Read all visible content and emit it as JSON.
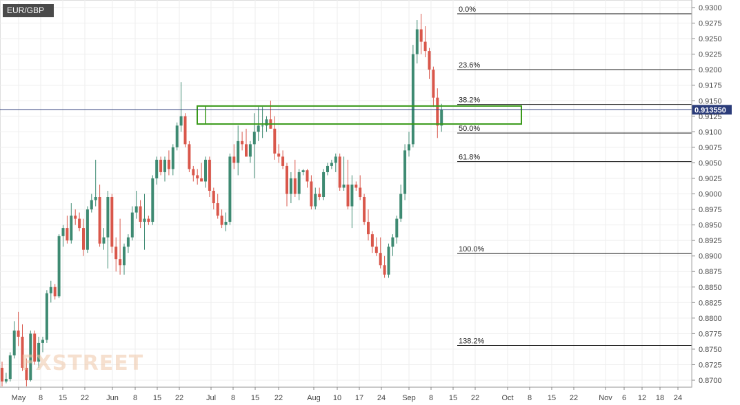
{
  "chart_data": {
    "type": "candlestick",
    "symbol": "EUR/GBP",
    "watermark": "FXSTREET",
    "y_axis": {
      "range": [
        0.869,
        0.931
      ],
      "ticks": [
        "0.9300",
        "0.9275",
        "0.9250",
        "0.9225",
        "0.9200",
        "0.9175",
        "0.9150",
        "0.9125",
        "0.9100",
        "0.9075",
        "0.9050",
        "0.9025",
        "0.9000",
        "0.8975",
        "0.8950",
        "0.8925",
        "0.8900",
        "0.8875",
        "0.8850",
        "0.8825",
        "0.8800",
        "0.8775",
        "0.8750",
        "0.8725",
        "0.8700"
      ]
    },
    "x_axis": {
      "labels": [
        "May",
        "8",
        "15",
        "22",
        "Jun",
        "8",
        "15",
        "22",
        "Jul",
        "8",
        "15",
        "22",
        "Aug",
        "10",
        "17",
        "24",
        "Sep",
        "8",
        "15",
        "22",
        "Oct",
        "8",
        "15",
        "22",
        "Nov",
        "6",
        "12",
        "18",
        "24"
      ]
    },
    "current_price": {
      "label": "0.913550",
      "value": 0.91355,
      "color": "#2b3c7a"
    },
    "fibonacci": [
      {
        "label": "0.0%",
        "value": 0.929
      },
      {
        "label": "23.6%",
        "value": 0.92
      },
      {
        "label": "38.2%",
        "value": 0.9144
      },
      {
        "label": "50.0%",
        "value": 0.9098
      },
      {
        "label": "61.8%",
        "value": 0.9052
      },
      {
        "label": "100.0%",
        "value": 0.8904
      },
      {
        "label": "138.2%",
        "value": 0.8756
      }
    ],
    "resistance_zone": {
      "top": 0.91415,
      "bottom": 0.91125,
      "color": "#3a9a1a"
    },
    "colors": {
      "up": "#3e8a72",
      "down": "#d9574b",
      "grid": "#eeeeee",
      "axis_text": "#444444"
    },
    "candles": [
      {
        "o": 0.872,
        "h": 0.873,
        "l": 0.869,
        "c": 0.8698
      },
      {
        "o": 0.8698,
        "h": 0.8712,
        "l": 0.8695,
        "c": 0.8702
      },
      {
        "o": 0.8702,
        "h": 0.8745,
        "l": 0.8698,
        "c": 0.874
      },
      {
        "o": 0.874,
        "h": 0.8795,
        "l": 0.8735,
        "c": 0.878
      },
      {
        "o": 0.878,
        "h": 0.881,
        "l": 0.8755,
        "c": 0.877
      },
      {
        "o": 0.877,
        "h": 0.879,
        "l": 0.8715,
        "c": 0.872
      },
      {
        "o": 0.872,
        "h": 0.8735,
        "l": 0.869,
        "c": 0.87
      },
      {
        "o": 0.87,
        "h": 0.878,
        "l": 0.8698,
        "c": 0.8775
      },
      {
        "o": 0.8775,
        "h": 0.878,
        "l": 0.8725,
        "c": 0.873
      },
      {
        "o": 0.873,
        "h": 0.877,
        "l": 0.872,
        "c": 0.876
      },
      {
        "o": 0.876,
        "h": 0.877,
        "l": 0.8745,
        "c": 0.8765
      },
      {
        "o": 0.8765,
        "h": 0.8845,
        "l": 0.876,
        "c": 0.884
      },
      {
        "o": 0.884,
        "h": 0.886,
        "l": 0.8825,
        "c": 0.885
      },
      {
        "o": 0.885,
        "h": 0.8855,
        "l": 0.883,
        "c": 0.8835
      },
      {
        "o": 0.8835,
        "h": 0.8935,
        "l": 0.8832,
        "c": 0.8932
      },
      {
        "o": 0.8932,
        "h": 0.895,
        "l": 0.8915,
        "c": 0.8945
      },
      {
        "o": 0.8945,
        "h": 0.8965,
        "l": 0.892,
        "c": 0.8925
      },
      {
        "o": 0.8925,
        "h": 0.8985,
        "l": 0.892,
        "c": 0.8965
      },
      {
        "o": 0.8965,
        "h": 0.8975,
        "l": 0.895,
        "c": 0.896
      },
      {
        "o": 0.896,
        "h": 0.897,
        "l": 0.894,
        "c": 0.8945
      },
      {
        "o": 0.8945,
        "h": 0.896,
        "l": 0.89,
        "c": 0.891
      },
      {
        "o": 0.891,
        "h": 0.898,
        "l": 0.8905,
        "c": 0.8975
      },
      {
        "o": 0.8975,
        "h": 0.9,
        "l": 0.897,
        "c": 0.899
      },
      {
        "o": 0.899,
        "h": 0.9055,
        "l": 0.898,
        "c": 0.8995
      },
      {
        "o": 0.8995,
        "h": 0.9015,
        "l": 0.8915,
        "c": 0.892
      },
      {
        "o": 0.892,
        "h": 0.8945,
        "l": 0.891,
        "c": 0.893
      },
      {
        "o": 0.893,
        "h": 0.9005,
        "l": 0.888,
        "c": 0.8995
      },
      {
        "o": 0.8995,
        "h": 0.9,
        "l": 0.8905,
        "c": 0.8915
      },
      {
        "o": 0.8915,
        "h": 0.893,
        "l": 0.8875,
        "c": 0.8895
      },
      {
        "o": 0.8895,
        "h": 0.896,
        "l": 0.887,
        "c": 0.8885
      },
      {
        "o": 0.8885,
        "h": 0.892,
        "l": 0.887,
        "c": 0.8915
      },
      {
        "o": 0.8915,
        "h": 0.8935,
        "l": 0.8905,
        "c": 0.893
      },
      {
        "o": 0.893,
        "h": 0.898,
        "l": 0.8925,
        "c": 0.897
      },
      {
        "o": 0.897,
        "h": 0.9005,
        "l": 0.896,
        "c": 0.898
      },
      {
        "o": 0.898,
        "h": 0.899,
        "l": 0.8945,
        "c": 0.8955
      },
      {
        "o": 0.8955,
        "h": 0.9,
        "l": 0.891,
        "c": 0.896
      },
      {
        "o": 0.896,
        "h": 0.8965,
        "l": 0.895,
        "c": 0.8955
      },
      {
        "o": 0.8955,
        "h": 0.903,
        "l": 0.895,
        "c": 0.9025
      },
      {
        "o": 0.9025,
        "h": 0.906,
        "l": 0.9015,
        "c": 0.9055
      },
      {
        "o": 0.9055,
        "h": 0.906,
        "l": 0.903,
        "c": 0.9035
      },
      {
        "o": 0.9035,
        "h": 0.906,
        "l": 0.902,
        "c": 0.9055
      },
      {
        "o": 0.9055,
        "h": 0.907,
        "l": 0.903,
        "c": 0.904
      },
      {
        "o": 0.904,
        "h": 0.908,
        "l": 0.903,
        "c": 0.9075
      },
      {
        "o": 0.9075,
        "h": 0.9115,
        "l": 0.907,
        "c": 0.911
      },
      {
        "o": 0.911,
        "h": 0.918,
        "l": 0.91,
        "c": 0.9125
      },
      {
        "o": 0.9125,
        "h": 0.913,
        "l": 0.9075,
        "c": 0.908
      },
      {
        "o": 0.908,
        "h": 0.9085,
        "l": 0.9035,
        "c": 0.904
      },
      {
        "o": 0.904,
        "h": 0.9045,
        "l": 0.902,
        "c": 0.903
      },
      {
        "o": 0.903,
        "h": 0.904,
        "l": 0.9015,
        "c": 0.9025
      },
      {
        "o": 0.9025,
        "h": 0.905,
        "l": 0.902,
        "c": 0.902
      },
      {
        "o": 0.902,
        "h": 0.906,
        "l": 0.901,
        "c": 0.9055
      },
      {
        "o": 0.9055,
        "h": 0.906,
        "l": 0.8995,
        "c": 0.9005
      },
      {
        "o": 0.9005,
        "h": 0.901,
        "l": 0.8975,
        "c": 0.8985
      },
      {
        "o": 0.8985,
        "h": 0.9,
        "l": 0.896,
        "c": 0.8965
      },
      {
        "o": 0.8965,
        "h": 0.8975,
        "l": 0.8945,
        "c": 0.895
      },
      {
        "o": 0.895,
        "h": 0.897,
        "l": 0.894,
        "c": 0.8955
      },
      {
        "o": 0.8955,
        "h": 0.9065,
        "l": 0.895,
        "c": 0.906
      },
      {
        "o": 0.906,
        "h": 0.908,
        "l": 0.904,
        "c": 0.905
      },
      {
        "o": 0.905,
        "h": 0.911,
        "l": 0.903,
        "c": 0.9085
      },
      {
        "o": 0.9085,
        "h": 0.91,
        "l": 0.907,
        "c": 0.908
      },
      {
        "o": 0.908,
        "h": 0.9105,
        "l": 0.906,
        "c": 0.906
      },
      {
        "o": 0.906,
        "h": 0.9085,
        "l": 0.905,
        "c": 0.908
      },
      {
        "o": 0.908,
        "h": 0.913,
        "l": 0.9025,
        "c": 0.91
      },
      {
        "o": 0.91,
        "h": 0.914,
        "l": 0.9085,
        "c": 0.911
      },
      {
        "o": 0.911,
        "h": 0.914,
        "l": 0.909,
        "c": 0.911
      },
      {
        "o": 0.911,
        "h": 0.9125,
        "l": 0.91,
        "c": 0.912
      },
      {
        "o": 0.912,
        "h": 0.915,
        "l": 0.9105,
        "c": 0.9105
      },
      {
        "o": 0.9105,
        "h": 0.9125,
        "l": 0.9055,
        "c": 0.9065
      },
      {
        "o": 0.9065,
        "h": 0.908,
        "l": 0.905,
        "c": 0.906
      },
      {
        "o": 0.906,
        "h": 0.907,
        "l": 0.904,
        "c": 0.9045
      },
      {
        "o": 0.9045,
        "h": 0.905,
        "l": 0.898,
        "c": 0.9
      },
      {
        "o": 0.9,
        "h": 0.9035,
        "l": 0.8985,
        "c": 0.9025
      },
      {
        "o": 0.9025,
        "h": 0.9055,
        "l": 0.8995,
        "c": 0.9
      },
      {
        "o": 0.9,
        "h": 0.904,
        "l": 0.899,
        "c": 0.9035
      },
      {
        "o": 0.9035,
        "h": 0.904,
        "l": 0.903,
        "c": 0.9038
      },
      {
        "o": 0.9038,
        "h": 0.904,
        "l": 0.901,
        "c": 0.902
      },
      {
        "o": 0.902,
        "h": 0.903,
        "l": 0.8975,
        "c": 0.898
      },
      {
        "o": 0.898,
        "h": 0.901,
        "l": 0.8975,
        "c": 0.9
      },
      {
        "o": 0.9,
        "h": 0.901,
        "l": 0.899,
        "c": 0.8995
      },
      {
        "o": 0.8995,
        "h": 0.904,
        "l": 0.899,
        "c": 0.9035
      },
      {
        "o": 0.9035,
        "h": 0.905,
        "l": 0.903,
        "c": 0.9045
      },
      {
        "o": 0.9045,
        "h": 0.9055,
        "l": 0.904,
        "c": 0.905
      },
      {
        "o": 0.905,
        "h": 0.9065,
        "l": 0.9035,
        "c": 0.906
      },
      {
        "o": 0.906,
        "h": 0.9065,
        "l": 0.9005,
        "c": 0.901
      },
      {
        "o": 0.901,
        "h": 0.906,
        "l": 0.9005,
        "c": 0.9015
      },
      {
        "o": 0.9015,
        "h": 0.9055,
        "l": 0.8975,
        "c": 0.898
      },
      {
        "o": 0.898,
        "h": 0.903,
        "l": 0.8945,
        "c": 0.9015
      },
      {
        "o": 0.9015,
        "h": 0.902,
        "l": 0.9005,
        "c": 0.901
      },
      {
        "o": 0.901,
        "h": 0.903,
        "l": 0.899,
        "c": 0.8995
      },
      {
        "o": 0.8995,
        "h": 0.9,
        "l": 0.895,
        "c": 0.8955
      },
      {
        "o": 0.8955,
        "h": 0.8975,
        "l": 0.8925,
        "c": 0.8935
      },
      {
        "o": 0.8935,
        "h": 0.894,
        "l": 0.8905,
        "c": 0.8915
      },
      {
        "o": 0.8915,
        "h": 0.893,
        "l": 0.89,
        "c": 0.8905
      },
      {
        "o": 0.8905,
        "h": 0.893,
        "l": 0.888,
        "c": 0.8885
      },
      {
        "o": 0.8885,
        "h": 0.89,
        "l": 0.8865,
        "c": 0.887
      },
      {
        "o": 0.887,
        "h": 0.892,
        "l": 0.8865,
        "c": 0.8915
      },
      {
        "o": 0.8915,
        "h": 0.8935,
        "l": 0.89,
        "c": 0.893
      },
      {
        "o": 0.893,
        "h": 0.8965,
        "l": 0.892,
        "c": 0.896
      },
      {
        "o": 0.896,
        "h": 0.9015,
        "l": 0.8955,
        "c": 0.9
      },
      {
        "o": 0.9,
        "h": 0.908,
        "l": 0.899,
        "c": 0.907
      },
      {
        "o": 0.907,
        "h": 0.91,
        "l": 0.906,
        "c": 0.908
      },
      {
        "o": 0.908,
        "h": 0.924,
        "l": 0.9075,
        "c": 0.9225
      },
      {
        "o": 0.9225,
        "h": 0.928,
        "l": 0.921,
        "c": 0.9265
      },
      {
        "o": 0.9265,
        "h": 0.929,
        "l": 0.9225,
        "c": 0.9245
      },
      {
        "o": 0.9245,
        "h": 0.927,
        "l": 0.922,
        "c": 0.923
      },
      {
        "o": 0.923,
        "h": 0.9235,
        "l": 0.9185,
        "c": 0.92
      },
      {
        "o": 0.92,
        "h": 0.9205,
        "l": 0.914,
        "c": 0.9155
      },
      {
        "o": 0.9155,
        "h": 0.917,
        "l": 0.909,
        "c": 0.911
      },
      {
        "o": 0.911,
        "h": 0.9145,
        "l": 0.91,
        "c": 0.91355
      }
    ]
  }
}
